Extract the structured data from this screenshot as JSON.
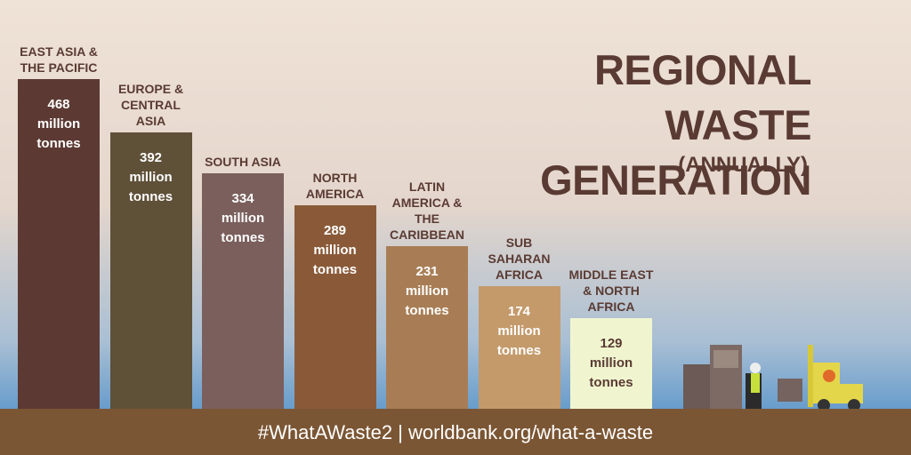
{
  "chart_data": {
    "type": "bar",
    "title": "REGIONAL WASTE GENERATION",
    "subtitle": "(ANNUALLY)",
    "categories": [
      "EAST ASIA & THE PACIFIC",
      "EUROPE & CENTRAL ASIA",
      "SOUTH ASIA",
      "NORTH AMERICA",
      "LATIN AMERICA & THE CARIBBEAN",
      "SUB SAHARAN AFRICA",
      "MIDDLE EAST & NORTH AFRICA"
    ],
    "values": [
      468,
      392,
      334,
      289,
      231,
      174,
      129
    ],
    "value_labels": [
      "468 million tonnes",
      "392 million tonnes",
      "334 million tonnes",
      "289 million tonnes",
      "231 million tonnes",
      "174 million tonnes",
      "129 million tonnes"
    ],
    "colors": [
      "#5c3a33",
      "#5f5038",
      "#7a5f5c",
      "#8a5a38",
      "#a87d55",
      "#c49a6b",
      "#f0f5d0"
    ],
    "footer": "#WhatAWaste2 | worldbank.org/what-a-waste"
  }
}
